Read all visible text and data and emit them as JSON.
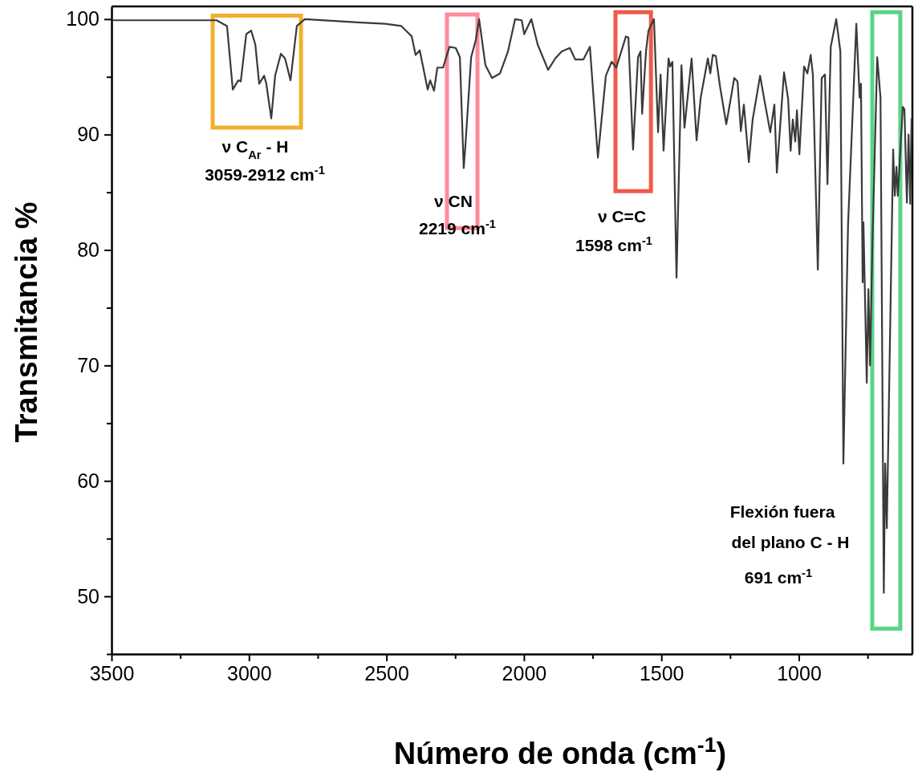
{
  "chart_data": {
    "type": "line",
    "xlabel": "Número de onda (cm$^{-1}$)",
    "ylabel": "Transmitancia %",
    "xlim": [
      3500,
      587
    ],
    "ylim": [
      45,
      101.1
    ],
    "xticks": [
      3500,
      {
        "value": 3250,
        "label": null
      },
      3000,
      {
        "value": 2750,
        "label": null
      },
      2500,
      {
        "value": 2250,
        "label": null
      },
      2000,
      {
        "value": 1750,
        "label": null
      },
      1500,
      {
        "value": 1250,
        "label": null
      },
      1000,
      {
        "value": 750,
        "label": null
      }
    ],
    "yticks": [
      {
        "value": 45,
        "label": null
      },
      50,
      {
        "value": 55,
        "label": null
      },
      60,
      {
        "value": 65,
        "label": null
      },
      70,
      {
        "value": 75,
        "label": null
      },
      80,
      {
        "value": 85,
        "label": null
      },
      90,
      {
        "value": 95,
        "label": null
      },
      100
    ],
    "grid": false,
    "marker": "none",
    "line_style": "solid",
    "series": [
      {
        "color": "#3a3a3a",
        "x": [
          3497,
          3322,
          3205,
          3118,
          3080,
          3059,
          3039,
          3030,
          3010,
          2992,
          2977,
          2963,
          2945,
          2937,
          2919,
          2905,
          2884,
          2869,
          2849,
          2826,
          2797,
          2592,
          2505,
          2446,
          2408,
          2394,
          2379,
          2350,
          2341,
          2327,
          2315,
          2294,
          2271,
          2248,
          2233,
          2219,
          2213,
          2192,
          2175,
          2163,
          2140,
          2116,
          2087,
          2058,
          2032,
          2008,
          1999,
          1973,
          1950,
          1912,
          1886,
          1862,
          1833,
          1813,
          1784,
          1760,
          1731,
          1702,
          1681,
          1664,
          1629,
          1620,
          1603,
          1585,
          1576,
          1570,
          1556,
          1547,
          1527,
          1512,
          1503,
          1492,
          1474,
          1468,
          1460,
          1445,
          1427,
          1416,
          1390,
          1372,
          1357,
          1331,
          1322,
          1313,
          1302,
          1287,
          1264,
          1255,
          1235,
          1223,
          1211,
          1200,
          1182,
          1168,
          1141,
          1124,
          1104,
          1089,
          1080,
          1054,
          1039,
          1030,
          1022,
          1013,
          1007,
          998,
          981,
          969,
          957,
          949,
          931,
          917,
          905,
          896,
          884,
          864,
          849,
          838,
          823,
          821,
          791,
          779,
          774,
          768,
          765,
          753,
          747,
          741,
          733,
          715,
          703,
          691,
          686,
          680,
          657,
          651,
          645,
          640,
          622,
          616,
          607,
          601,
          595,
          590
        ],
        "values": [
          99.9,
          99.9,
          99.9,
          99.9,
          99.4,
          93.9,
          94.7,
          94.6,
          98.7,
          99.0,
          97.8,
          94.4,
          95.1,
          94.4,
          91.4,
          95.1,
          97.0,
          96.6,
          94.7,
          99.4,
          100,
          99.7,
          99.6,
          99.4,
          98.5,
          96.9,
          97.3,
          93.9,
          94.7,
          93.8,
          95.8,
          95.8,
          97.6,
          97.5,
          96.7,
          87.1,
          89.0,
          96.7,
          98.2,
          100,
          96.0,
          94.9,
          95.3,
          97.2,
          100,
          99.9,
          98.7,
          100,
          97.8,
          95.6,
          96.6,
          97.2,
          97.5,
          96.5,
          96.5,
          97.6,
          88.0,
          95.1,
          96.3,
          95.8,
          98.5,
          98.4,
          88.7,
          96.7,
          97.2,
          91.8,
          97.2,
          99.0,
          100,
          90.2,
          95.2,
          88.6,
          96.6,
          95.9,
          96.3,
          77.6,
          96.0,
          90.6,
          96.6,
          89.5,
          93.2,
          96.6,
          95.3,
          96.9,
          96.8,
          94.2,
          90.9,
          92.1,
          94.9,
          94.6,
          90.3,
          92.6,
          87.6,
          91.3,
          95.1,
          92.8,
          90.2,
          92.6,
          86.7,
          95.4,
          93.1,
          88.6,
          91.3,
          89.4,
          92.1,
          88.3,
          95.9,
          95.3,
          96.9,
          95.2,
          78.3,
          94.9,
          95.2,
          85.7,
          97.6,
          100,
          97.2,
          61.5,
          79.9,
          82.2,
          99.6,
          93.2,
          94.4,
          77.2,
          82.4,
          68.5,
          76.6,
          70.0,
          79.9,
          96.7,
          93.2,
          50.3,
          61.5,
          55.9,
          88.7,
          84.7,
          87.2,
          84.7,
          92.4,
          92.2,
          84.1,
          90.0,
          84.0,
          91.4
        ]
      }
    ],
    "annotations": [
      "ν C$_{Ar}$ - H",
      "3059-2912 cm$^{-1}$",
      "ν CN",
      "2219 cm$^{-1}$",
      "ν C=C",
      "1598 cm$^{-1}$",
      "Flexión fuera",
      "del plano C - H",
      "691 cm$^{-1}$"
    ]
  }
}
